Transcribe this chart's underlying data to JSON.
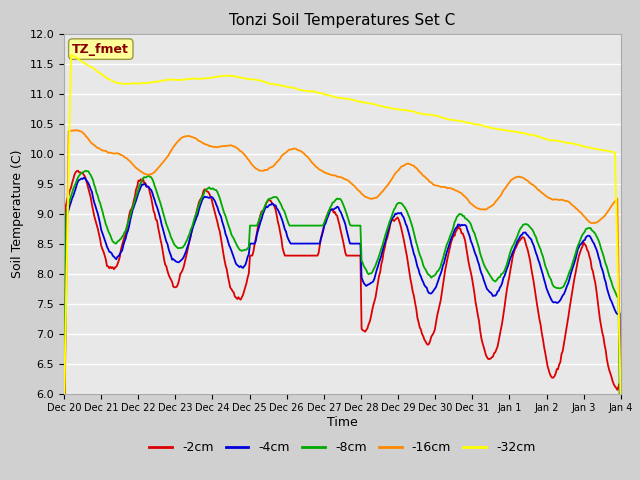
{
  "title": "Tonzi Soil Temperatures Set C",
  "xlabel": "Time",
  "ylabel": "Soil Temperature (C)",
  "ylim": [
    6.0,
    12.0
  ],
  "yticks": [
    6.0,
    6.5,
    7.0,
    7.5,
    8.0,
    8.5,
    9.0,
    9.5,
    10.0,
    10.5,
    11.0,
    11.5,
    12.0
  ],
  "xtick_labels": [
    "Dec 20",
    "Dec 21",
    "Dec 22",
    "Dec 23",
    "Dec 24",
    "Dec 25",
    "Dec 26",
    "Dec 27",
    "Dec 28",
    "Dec 29",
    "Dec 30",
    "Dec 31",
    "Jan 1",
    "Jan 2",
    "Jan 3",
    "Jan 4"
  ],
  "series_colors": {
    "-2cm": "#dd0000",
    "-4cm": "#0000dd",
    "-8cm": "#00aa00",
    "-16cm": "#ff8800",
    "-32cm": "#ffff00"
  },
  "legend_labels": [
    "-2cm",
    "-4cm",
    "-8cm",
    "-16cm",
    "-32cm"
  ],
  "legend_colors": [
    "#dd0000",
    "#0000dd",
    "#00aa00",
    "#ff8800",
    "#ffff00"
  ],
  "annotation_text": "TZ_fmet",
  "annotation_color": "#880000",
  "annotation_bg": "#ffff99",
  "fig_bg_color": "#d0d0d0",
  "plot_bg_color": "#e8e8e8",
  "n_points": 480,
  "days": 15
}
